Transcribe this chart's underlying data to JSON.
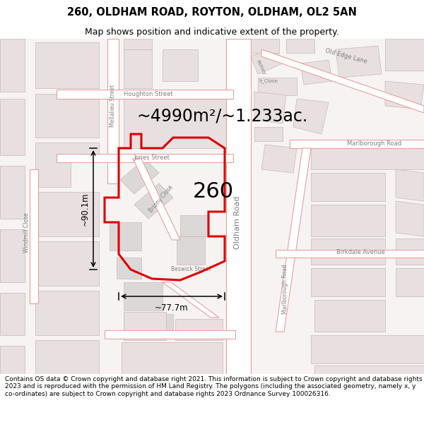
{
  "title_line1": "260, OLDHAM ROAD, ROYTON, OLDHAM, OL2 5AN",
  "title_line2": "Map shows position and indicative extent of the property.",
  "area_text": "~4990m²/~1.233ac.",
  "number_text": "260",
  "dim_horizontal": "~77.7m",
  "dim_vertical": "~90.1m",
  "copyright_text": "Contains OS data © Crown copyright and database right 2021. This information is subject to Crown copyright and database rights 2023 and is reproduced with the permission of HM Land Registry. The polygons (including the associated geometry, namely x, y co-ordinates) are subject to Crown copyright and database rights 2023 Ordnance Survey 100026316.",
  "bg_color": "#ffffff",
  "map_bg_color": "#f7f3f3",
  "building_fill": "#e8e0e0",
  "building_edge": "#c8b8b8",
  "road_fill": "#ffffff",
  "road_stroke": "#e8a0a0",
  "highlight_color": "#dd0000",
  "label_color": "#808080",
  "text_color": "#000000",
  "dim_color": "#000000",
  "title_fontsize": 10.5,
  "subtitle_fontsize": 9,
  "area_fontsize": 17,
  "number_fontsize": 22,
  "dim_fontsize": 8.5,
  "road_label_fontsize": 6.5,
  "copyright_fontsize": 6.5
}
